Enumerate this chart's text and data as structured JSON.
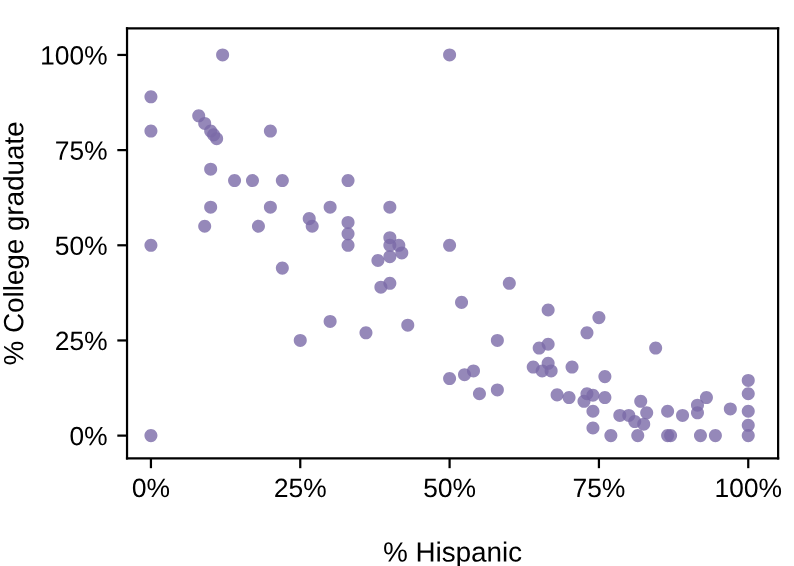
{
  "chart_data": {
    "type": "scatter",
    "xlabel": "% Hispanic",
    "ylabel": "% College graduate",
    "xlim": [
      -4,
      105
    ],
    "ylim": [
      -6,
      107
    ],
    "xticks": [
      {
        "value": 0,
        "label": "0%"
      },
      {
        "value": 25,
        "label": "25%"
      },
      {
        "value": 50,
        "label": "50%"
      },
      {
        "value": 75,
        "label": "75%"
      },
      {
        "value": 100,
        "label": "100%"
      }
    ],
    "yticks": [
      {
        "value": 0,
        "label": "0%"
      },
      {
        "value": 25,
        "label": "25%"
      },
      {
        "value": 50,
        "label": "50%"
      },
      {
        "value": 75,
        "label": "75%"
      },
      {
        "value": 100,
        "label": "100%"
      }
    ],
    "grid": false,
    "marker": "circle",
    "series": [
      {
        "color": "#7b6aa8",
        "x": [
          0,
          0,
          0,
          0,
          12,
          50,
          8,
          9,
          10,
          10.5,
          11,
          20,
          10,
          14,
          17,
          22,
          33,
          10,
          20,
          30,
          40,
          9,
          18,
          26.5,
          27,
          33,
          33,
          33,
          40,
          40,
          41.5,
          50,
          38,
          40,
          42,
          22,
          40,
          38.5,
          30,
          36,
          43,
          25,
          50,
          60,
          52,
          66.5,
          75,
          73,
          58,
          84.5,
          65,
          66.5,
          66.5,
          64,
          65.5,
          67,
          70.5,
          76,
          52.5,
          54,
          55,
          58,
          68,
          70,
          73,
          72.5,
          74,
          76,
          74,
          74,
          77,
          78.5,
          80,
          81,
          82,
          83,
          82.5,
          81.5,
          86.5,
          86.5,
          87,
          89,
          91.5,
          91.5,
          93,
          92,
          94.5,
          97,
          100,
          100,
          100,
          100,
          100
        ],
        "values": [
          89,
          80,
          50,
          0,
          100,
          100,
          84,
          82,
          80,
          79,
          78,
          80,
          70,
          67,
          67,
          67,
          67,
          60,
          60,
          60,
          60,
          55,
          55,
          57,
          55,
          56,
          53,
          50,
          52,
          50,
          50,
          50,
          46,
          47,
          48,
          44,
          40,
          39,
          30,
          27,
          29,
          25,
          15,
          40,
          35,
          33,
          31,
          27,
          25,
          23,
          23,
          24,
          19,
          18,
          17,
          17,
          18,
          15.5,
          16,
          17,
          11,
          12,
          10.7,
          10,
          11,
          9,
          10.6,
          10,
          6.4,
          2,
          0,
          5.3,
          5.3,
          3.7,
          9,
          6,
          3,
          0,
          6.4,
          0,
          0,
          5.3,
          6,
          8,
          10,
          0,
          0,
          7,
          14.5,
          11,
          6.4,
          2.7,
          0
        ]
      }
    ]
  }
}
